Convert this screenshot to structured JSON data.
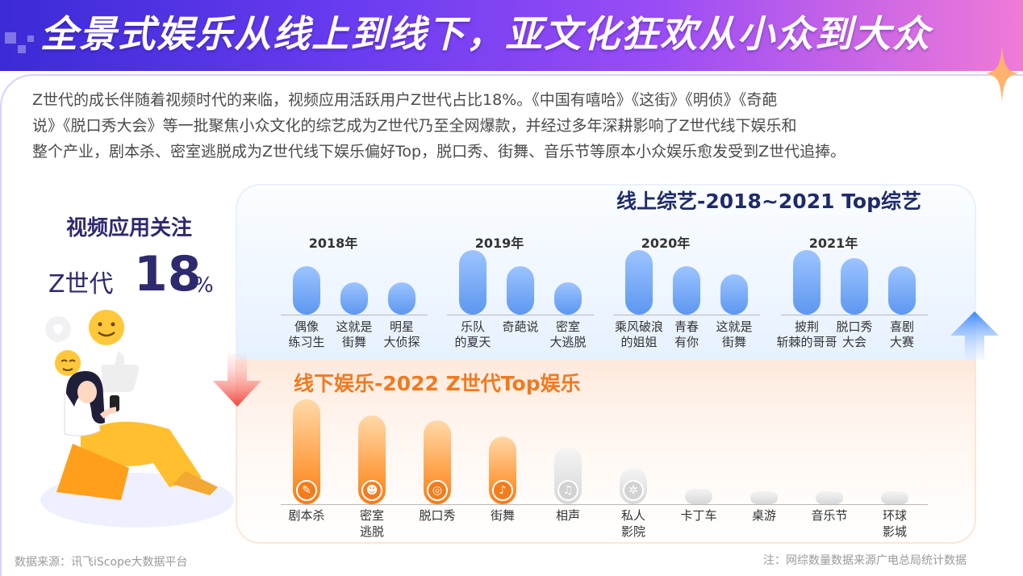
{
  "header": {
    "title": "全景式娱乐从线上到线下，亚文化狂欢从小众到大众"
  },
  "intro": {
    "lines": [
      "Z世代的成长伴随着视频时代的来临，视频应用活跃用户Z世代占比18%。《中国有嘻哈》《这街》《明侦》《奇葩",
      "说》《脱口秀大会》等一批聚焦小众文化的综艺成为Z世代乃至全网爆款，并经过多年深耕影响了Z世代线下娱乐和",
      "整个产业，剧本杀、密室逃脱成为Z世代线下娱乐偏好Top，脱口秀、街舞、音乐节等原本小众娱乐愈发受到Z世代追捧。"
    ]
  },
  "side": {
    "title": "视频应用关注",
    "stat_label": "Z世代",
    "stat_value": "18",
    "stat_unit": "%"
  },
  "colors": {
    "online_bar": "#5d97f0",
    "offline_bar": "#f57c1b",
    "offline_bar_faded": "#d7d7d7",
    "online_title": "#1f2a6b",
    "offline_title": "#f07a1f"
  },
  "chart_data": [
    {
      "type": "bar",
      "title": "线上综艺-2018~2021 Top综艺",
      "groups": [
        {
          "year": "2018年",
          "shows": [
            {
              "name": "偶像\n练习生",
              "value": 3
            },
            {
              "name": "这就是\n街舞",
              "value": 2
            },
            {
              "name": "明星\n大侦探",
              "value": 2
            }
          ]
        },
        {
          "year": "2019年",
          "shows": [
            {
              "name": "乐队\n的夏天",
              "value": 4
            },
            {
              "name": "奇葩说",
              "value": 3
            },
            {
              "name": "密室\n大逃脱",
              "value": 2
            }
          ]
        },
        {
          "year": "2020年",
          "shows": [
            {
              "name": "乘风破浪\n的姐姐",
              "value": 4
            },
            {
              "name": "青春\n有你",
              "value": 3
            },
            {
              "name": "这就是\n街舞",
              "value": 2.5
            }
          ]
        },
        {
          "year": "2021年",
          "shows": [
            {
              "name": "披荆\n斩棘的哥哥",
              "value": 4
            },
            {
              "name": "脱口秀\n大会",
              "value": 3.5
            },
            {
              "name": "喜剧\n大赛",
              "value": 3
            }
          ]
        }
      ]
    },
    {
      "type": "bar",
      "title": "线下娱乐-2022 Z世代Top娱乐",
      "categories": [
        "剧本杀",
        "密室\n逃脱",
        "脱口秀",
        "街舞",
        "相声",
        "私人\n影院",
        "卡丁车",
        "桌游",
        "音乐节",
        "环球\n影城"
      ],
      "values": [
        10,
        8.5,
        8,
        6.5,
        5.5,
        3.5,
        1.5,
        1,
        1,
        1
      ],
      "highlighted": [
        true,
        true,
        true,
        true,
        false,
        false,
        false,
        false,
        false,
        false
      ],
      "icons": [
        "feather-icon",
        "devil-face-icon",
        "mouth-icon",
        "dancer-icon",
        "microphone-icon",
        "film-reel-icon",
        "",
        "",
        "",
        ""
      ]
    }
  ],
  "footer": {
    "source": "数据来源：讯飞iScope大数据平台",
    "note": "注：网综数量数据来源广电总局统计数据"
  }
}
